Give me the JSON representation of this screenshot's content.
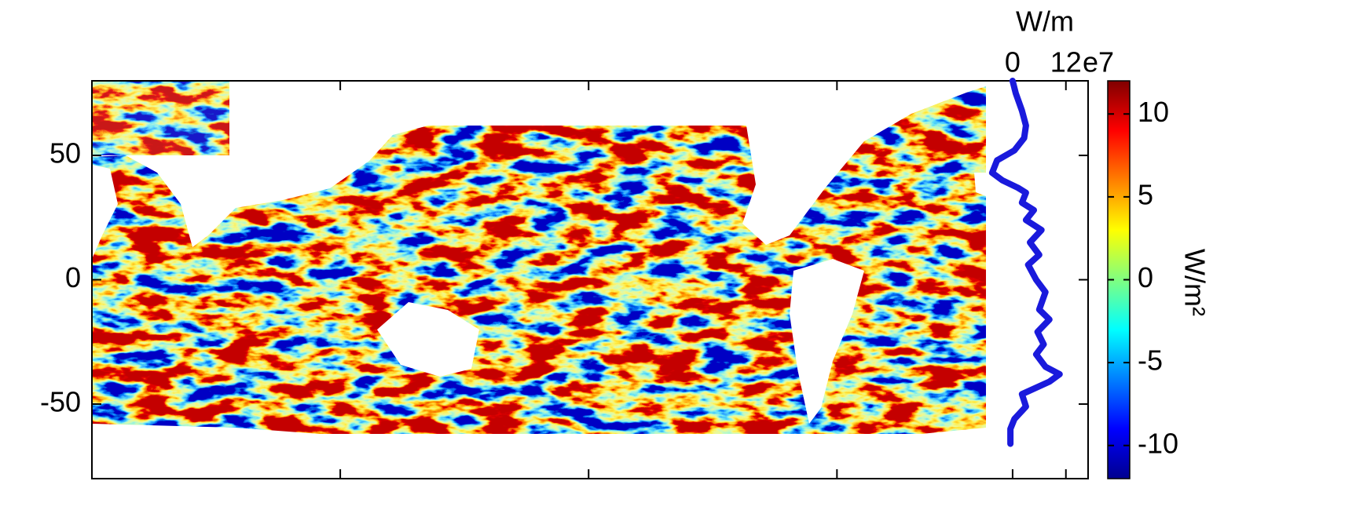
{
  "chart_data": {
    "type": "map-profile",
    "map": {
      "ylim": [
        -80,
        80
      ],
      "yticks": [
        50,
        0,
        -50
      ],
      "xlim": [
        20,
        380
      ],
      "xticks": [
        20,
        120,
        220,
        320
      ]
    },
    "profile": {
      "title": "W/m",
      "xlim": [
        -6,
        17
      ],
      "xticks": [
        0,
        12
      ],
      "exponent": "e7",
      "color": "#1a1adc",
      "lat": [
        80,
        75,
        68,
        62,
        57,
        52,
        48,
        43,
        40,
        37,
        35,
        31,
        28,
        24,
        20,
        15,
        10,
        6,
        0,
        -5,
        -12,
        -16,
        -21,
        -26,
        -30,
        -35,
        -38,
        -41,
        -46,
        -51,
        -56,
        -60,
        -66
      ],
      "values": [
        0,
        0.7,
        2.1,
        3,
        2.6,
        0.4,
        -3.5,
        -4.6,
        -2.3,
        1.2,
        3,
        2.1,
        4.8,
        3,
        6.5,
        3.9,
        6,
        3.5,
        5.3,
        7.4,
        6,
        8.3,
        5.6,
        7,
        5.3,
        7.4,
        10.6,
        8.3,
        2.1,
        3,
        0.4,
        -0.5,
        -0.5
      ]
    },
    "colorbar": {
      "label": "W/m²",
      "clim": [
        -12,
        12
      ],
      "ticks": [
        10,
        5,
        0,
        -5,
        -10
      ]
    }
  }
}
